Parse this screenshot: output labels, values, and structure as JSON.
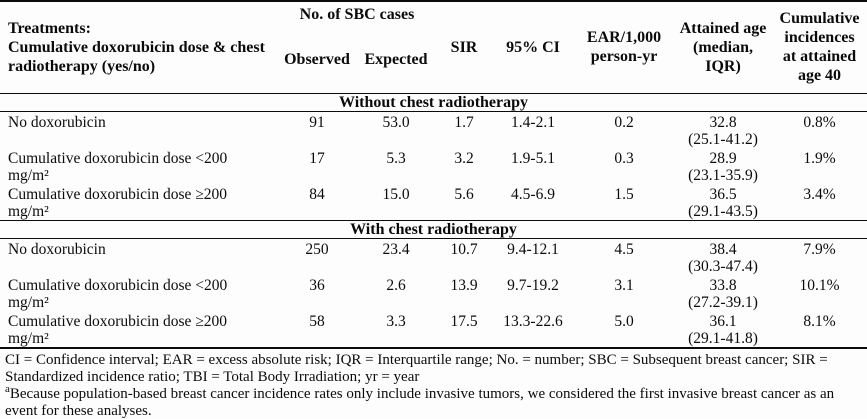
{
  "table": {
    "header": {
      "treatments": "Treatments:\nCumulative doxorubicin dose & chest\nradiotherapy (yes/no)",
      "sbc_group": "No. of SBC cases",
      "observed": "Observed",
      "expected": "Expected",
      "sir": "SIR",
      "ci": "95% CI",
      "ear": "EAR/1,000\nperson-yr",
      "attained_age": "Attained age\n(median,\nIQR)",
      "cumulative": "Cumulative\nincidences\nat attained\nage 40"
    },
    "sections": [
      {
        "title": "Without chest radiotherapy",
        "rows": [
          {
            "treatment_line1": "No doxorubicin",
            "treatment_line2": "",
            "observed": "91",
            "expected": "53.0",
            "sir": "1.7",
            "ci": "1.4-2.1",
            "ear": "0.2",
            "age_median": "32.8",
            "age_iqr": "(25.1-41.2)",
            "cumulative_incidence": "0.8%"
          },
          {
            "treatment_line1": "Cumulative doxorubicin dose <200",
            "treatment_line2": "mg/m²",
            "observed": "17",
            "expected": "5.3",
            "sir": "3.2",
            "ci": "1.9-5.1",
            "ear": "0.3",
            "age_median": "28.9",
            "age_iqr": "(23.1-35.9)",
            "cumulative_incidence": "1.9%"
          },
          {
            "treatment_line1": "Cumulative doxorubicin dose ≥200",
            "treatment_line2": "mg/m²",
            "observed": "84",
            "expected": "15.0",
            "sir": "5.6",
            "ci": "4.5-6.9",
            "ear": "1.5",
            "age_median": "36.5",
            "age_iqr": "(29.1-43.5)",
            "cumulative_incidence": "3.4%"
          }
        ]
      },
      {
        "title": "With chest radiotherapy",
        "rows": [
          {
            "treatment_line1": "No doxorubicin",
            "treatment_line2": "",
            "observed": "250",
            "expected": "23.4",
            "sir": "10.7",
            "ci": "9.4-12.1",
            "ear": "4.5",
            "age_median": "38.4",
            "age_iqr": "(30.3-47.4)",
            "cumulative_incidence": "7.9%"
          },
          {
            "treatment_line1": "Cumulative doxorubicin dose <200",
            "treatment_line2": "mg/m²",
            "observed": "36",
            "expected": "2.6",
            "sir": "13.9",
            "ci": "9.7-19.2",
            "ear": "3.1",
            "age_median": "33.8",
            "age_iqr": "(27.2-39.1)",
            "cumulative_incidence": "10.1%"
          },
          {
            "treatment_line1": "Cumulative doxorubicin dose ≥200",
            "treatment_line2": "mg/m²",
            "observed": "58",
            "expected": "3.3",
            "sir": "17.5",
            "ci": "13.3-22.6",
            "ear": "5.0",
            "age_median": "36.1",
            "age_iqr": "(29.1-41.8)",
            "cumulative_incidence": "8.1%"
          }
        ]
      }
    ]
  },
  "footer": {
    "abbreviations": "CI = Confidence interval; EAR = excess absolute risk; IQR = Interquartile range; No. = number; SBC = Subsequent breast cancer; SIR = Standardized incidence ratio; TBI = Total Body Irradiation; yr = year",
    "note_marker": "a",
    "note_text": "Because population-based breast cancer incidence rates only include invasive tumors, we considered the first invasive breast cancer as an event for these analyses."
  }
}
